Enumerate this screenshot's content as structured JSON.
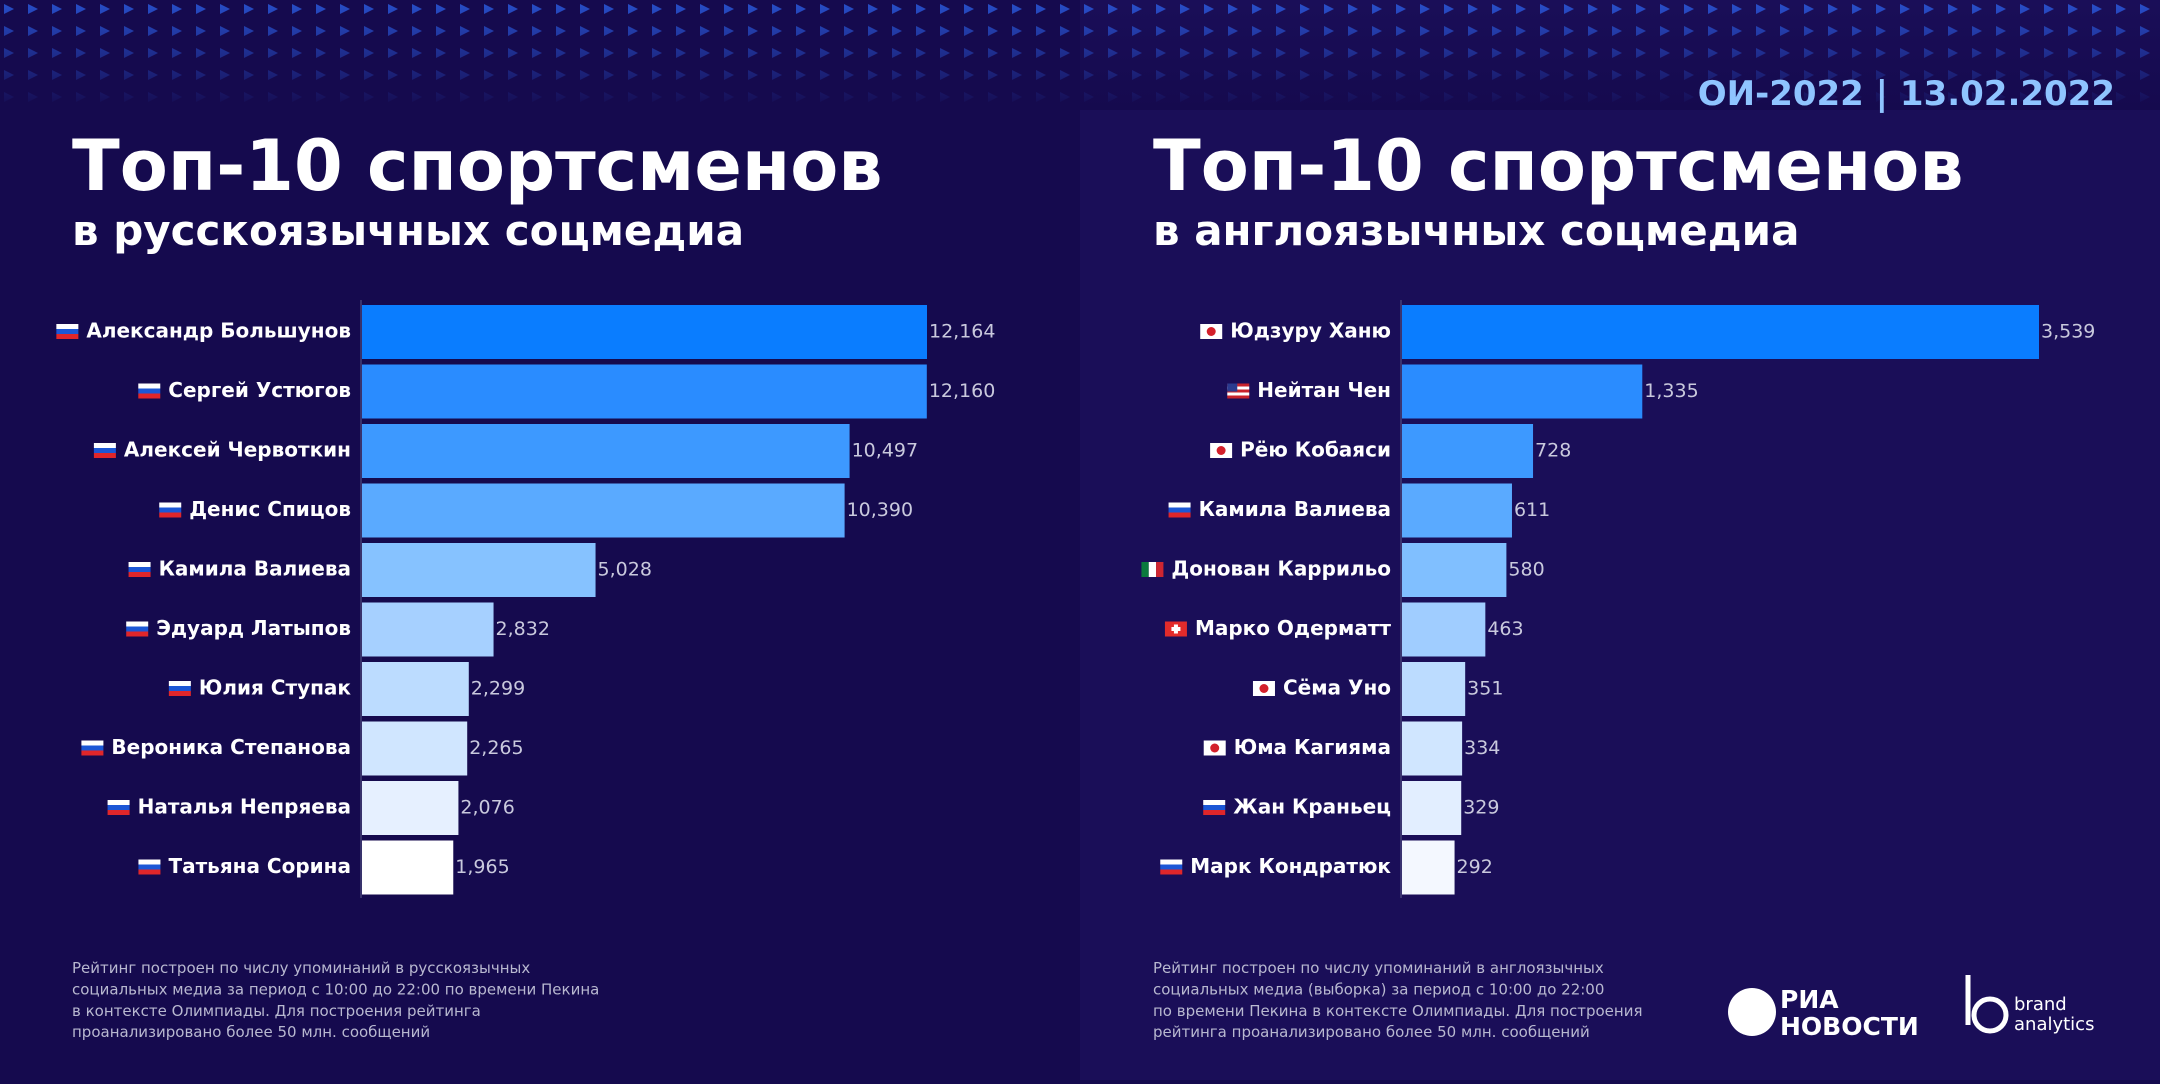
{
  "header": {
    "date_label": "ОИ-2022 | 13.02.2022"
  },
  "chart_data": [
    {
      "type": "bar",
      "orientation": "horizontal",
      "title": "Топ-10 спортсменов",
      "subtitle": "в русскоязычных соцмедиа",
      "categories": [
        "Александр Большунов",
        "Сергей Устюгов",
        "Алексей Червоткин",
        "Денис Спицов",
        "Камила Валиева",
        "Эдуард Латыпов",
        "Юлия Ступак",
        "Вероника Степанова",
        "Наталья Непряева",
        "Татьяна Сорина"
      ],
      "values": [
        12164,
        12160,
        10497,
        10390,
        5028,
        2832,
        2299,
        2265,
        2076,
        1965
      ],
      "value_labels": [
        "12,164",
        "12,160",
        "10,497",
        "10,390",
        "5,028",
        "2,832",
        "2,299",
        "2,265",
        "2,076",
        "1,965"
      ],
      "colors": [
        "#0a7dff",
        "#2a8cff",
        "#3d99ff",
        "#5aaaff",
        "#86c2ff",
        "#a6d0ff",
        "#bcdcff",
        "#d0e6ff",
        "#e6f0ff",
        "#ffffff"
      ],
      "footnote": [
        "Рейтинг построен по числу упоминаний в русскоязычных",
        "социальных медиа за период с 10:00 до 22:00 по времени Пекина",
        "в контексте Олимпиады. Для построения рейтинга",
        "проанализировано более 50 млн. сообщений"
      ]
    },
    {
      "type": "bar",
      "orientation": "horizontal",
      "title": "Топ-10 спортсменов",
      "subtitle": "в англоязычных соцмедиа",
      "categories": [
        "Юдзуру Ханю",
        "Нейтан Чен",
        "Рёю Кобаяси",
        "Камила Валиева",
        "Донован Каррильо",
        "Марко Одерматт",
        "Сёма Уно",
        "Юма Кагияма",
        "Жан Краньец",
        "Марк Кондратюк"
      ],
      "values": [
        3539,
        1335,
        728,
        611,
        580,
        463,
        351,
        334,
        329,
        292
      ],
      "value_labels": [
        "3,539",
        "1,335",
        "728",
        "611",
        "580",
        "463",
        "351",
        "334",
        "329",
        "292"
      ],
      "colors": [
        "#0a7dff",
        "#2a8cff",
        "#3d99ff",
        "#5aaaff",
        "#80bfff",
        "#a0cdff",
        "#bcdcff",
        "#d0e6ff",
        "#e2eeff",
        "#f4f8ff"
      ],
      "footnote": [
        "Рейтинг построен по числу упоминаний в англоязычных",
        "социальных медиа (выборка) за период с 10:00 до 22:00",
        "по времени Пекина в контексте Олимпиады. Для построения",
        "рейтинга проанализировано более 50 млн. сообщений"
      ]
    }
  ],
  "logos": {
    "ria": [
      "РИА",
      "НОВОСТИ"
    ],
    "brand": [
      "brand",
      "analytics"
    ]
  }
}
